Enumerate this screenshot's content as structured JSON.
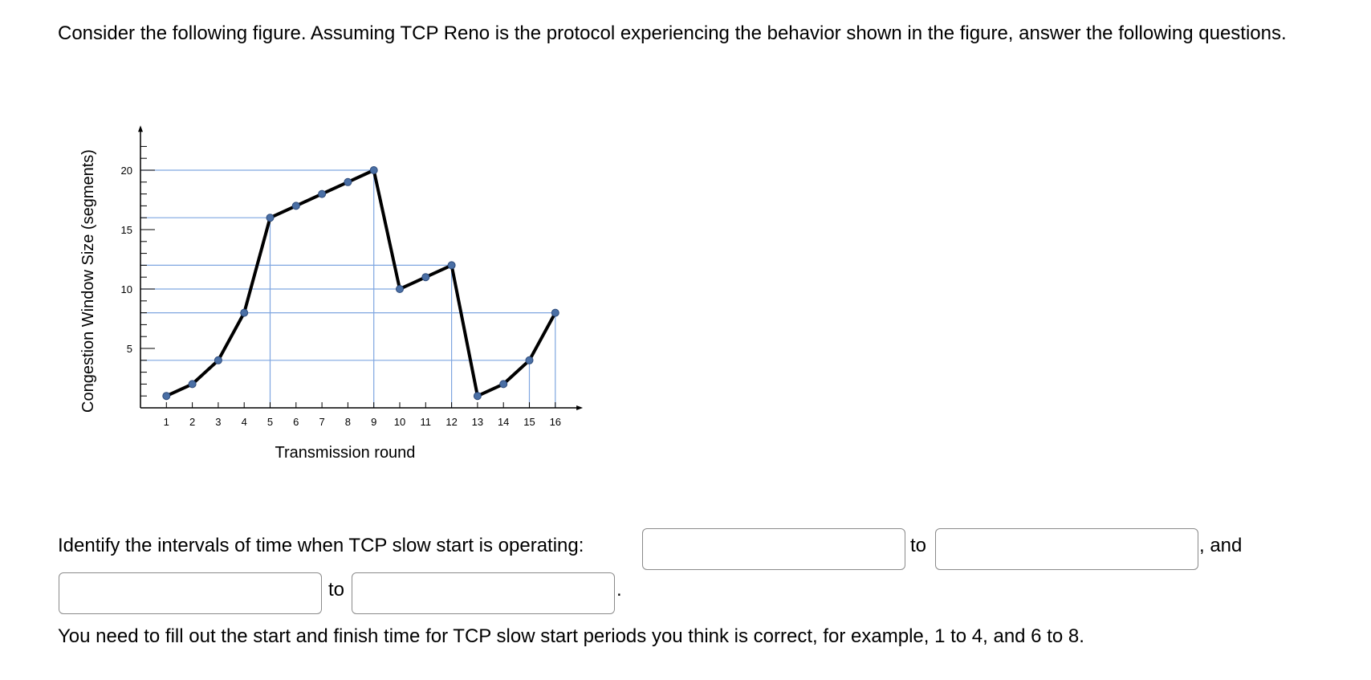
{
  "question": {
    "intro": "Consider the following figure. Assuming TCP Reno is the protocol experiencing the behavior shown in the figure, answer the following questions.",
    "prompt": "Identify the intervals of time when TCP slow start is operating:",
    "to_word": "to",
    "and_word": ", and",
    "period": ".",
    "note": "You need to fill out the start and finish time for TCP slow start periods you think is correct, for example, 1 to 4, and 6 to 8.",
    "answers": [
      "",
      "",
      "",
      ""
    ]
  },
  "chart_data": {
    "type": "line",
    "xlabel": "Transmission round",
    "ylabel": "Congestion Window Size (segments)",
    "x": [
      1,
      2,
      3,
      4,
      5,
      6,
      7,
      8,
      9,
      10,
      11,
      12,
      13,
      14,
      15,
      16
    ],
    "series": [
      {
        "values": [
          1,
          2,
          4,
          8,
          16,
          17,
          18,
          19,
          20,
          10,
          11,
          12,
          1,
          2,
          4,
          8
        ]
      }
    ],
    "xticks": [
      "1",
      "2",
      "3",
      "4",
      "5",
      "6",
      "7",
      "8",
      "9",
      "10",
      "11",
      "12",
      "13",
      "14",
      "15",
      "16"
    ],
    "yticks": [
      "5",
      "10",
      "15",
      "20"
    ],
    "xlim": [
      0,
      17
    ],
    "ylim": [
      0,
      23
    ],
    "reference_lines_y": [
      4,
      8,
      12,
      16,
      20,
      10
    ],
    "colors": {
      "line": "#000000",
      "marker": "#4a6fa5",
      "guide": "#7fa6e0",
      "axis": "#000000"
    }
  }
}
